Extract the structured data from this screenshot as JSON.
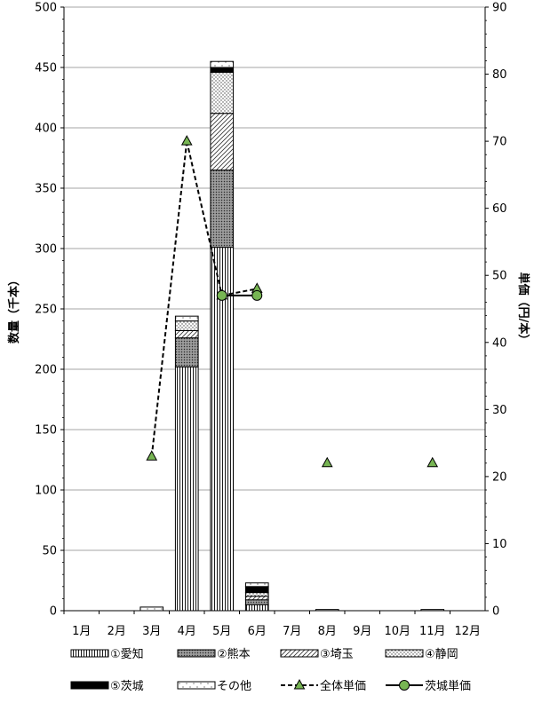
{
  "chart_data": {
    "type": "bar",
    "stacked": true,
    "categories": [
      "1月",
      "2月",
      "3月",
      "4月",
      "5月",
      "6月",
      "7月",
      "8月",
      "9月",
      "10月",
      "11月",
      "12月"
    ],
    "series": [
      {
        "name": "①愛知",
        "values": [
          0,
          0,
          0,
          202,
          301,
          5,
          0,
          0,
          0,
          0,
          0,
          0
        ]
      },
      {
        "name": "②熊本",
        "values": [
          0,
          0,
          0,
          24,
          64,
          4,
          0,
          0,
          0,
          0,
          0,
          0
        ]
      },
      {
        "name": "③埼玉",
        "values": [
          0,
          0,
          0,
          6,
          47,
          3,
          0,
          0,
          0,
          0,
          0,
          0
        ]
      },
      {
        "name": "④静岡",
        "values": [
          0,
          0,
          0,
          8,
          34,
          3,
          0,
          0,
          0,
          0,
          0,
          0
        ]
      },
      {
        "name": "⑤茨城",
        "values": [
          0,
          0,
          0,
          0,
          4,
          5,
          0,
          0,
          0,
          0,
          0,
          0
        ]
      },
      {
        "name": "その他",
        "values": [
          0,
          0,
          3,
          4,
          5,
          3,
          0,
          1,
          0,
          0,
          1,
          0
        ]
      }
    ],
    "lines": [
      {
        "name": "全体単価",
        "values": [
          null,
          null,
          23,
          70,
          47,
          48,
          null,
          22,
          null,
          null,
          22,
          null
        ]
      },
      {
        "name": "茨城単価",
        "values": [
          null,
          null,
          null,
          null,
          47,
          47,
          null,
          null,
          null,
          null,
          null,
          null
        ]
      }
    ],
    "ylabel": "数量（千本）",
    "y2label": "単価（円/本）",
    "ylim": [
      0,
      500
    ],
    "y2lim": [
      0,
      90
    ],
    "yticks": [
      "0",
      "50",
      "100",
      "150",
      "200",
      "250",
      "300",
      "350",
      "400",
      "450",
      "500"
    ],
    "y2ticks": [
      "0",
      "10",
      "20",
      "30",
      "40",
      "50",
      "60",
      "70",
      "80",
      "90"
    ],
    "grid": true,
    "legend_position": "bottom"
  }
}
